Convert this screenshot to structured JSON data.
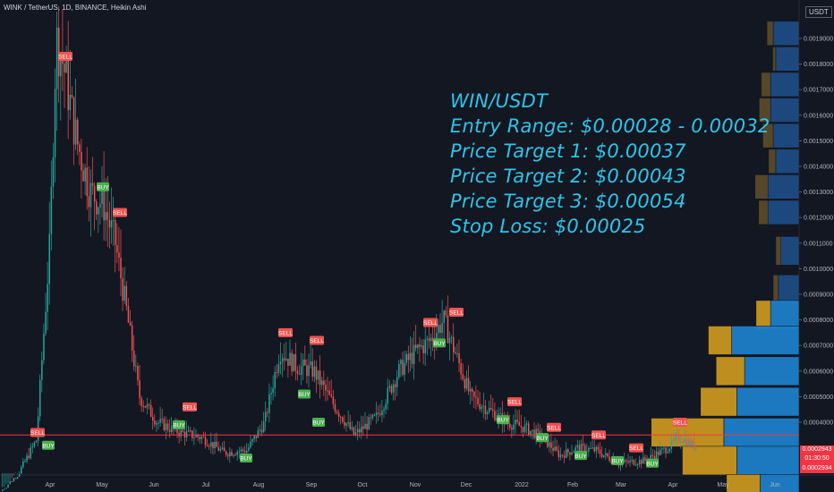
{
  "header": {
    "symbol_line": "WINK / TetherUS, 1D, BINANCE, Heikin Ashi",
    "currency": "USDT"
  },
  "annotation": {
    "lines": [
      "WIN/USDT",
      "Entry Range: $0.00028 - 0.00032",
      "Price Target 1: $0.00037",
      "Price Target 2: $0.00043",
      "Price Target 3: $0.00054",
      "Stop Loss: $0.00025"
    ]
  },
  "price_axis": {
    "labels": [
      "0.0019000",
      "0.0018000",
      "0.0017000",
      "0.0016000",
      "0.0015000",
      "0.0014000",
      "0.0013000",
      "0.0012000",
      "0.0011000",
      "0.0010000",
      "0.0009000",
      "0.0008000",
      "0.0007000",
      "0.0006000",
      "0.0005000",
      "0.0004000"
    ]
  },
  "current_price": {
    "price": "0.0002943",
    "countdown": "01:30:50",
    "reference": "0.0002934"
  },
  "colors": {
    "background": "#131722",
    "up": "#26a69a",
    "down": "#ef5350",
    "annotation": "#2fc4e8",
    "entry_line": "#f23645",
    "vp_up": "#2962ff",
    "vp_down": "#f0b323"
  },
  "chart_data": {
    "type": "candlestick",
    "title": "WINK / TetherUS, 1D, BINANCE, Heikin Ashi",
    "x_tick_labels": [
      "Apr",
      "May",
      "Jun",
      "Jul",
      "Aug",
      "Sep",
      "Oct",
      "Nov",
      "Dec",
      "2022",
      "Feb",
      "Mar",
      "Apr",
      "May",
      "Jun"
    ],
    "y_scale": "linear",
    "y_range": [
      0.0001,
      0.00195
    ],
    "horizontal_line": 0.00035,
    "signals": [
      {
        "label": "SELL",
        "date": "Mar",
        "price": 0.00036
      },
      {
        "label": "BUY",
        "date": "Mar",
        "price": 0.00031
      },
      {
        "label": "SELL",
        "date": "Apr",
        "price": 0.00183
      },
      {
        "label": "BUY",
        "date": "May",
        "price": 0.00132
      },
      {
        "label": "SELL",
        "date": "May",
        "price": 0.00122
      },
      {
        "label": "SELL",
        "date": "Jun",
        "price": 0.00046
      },
      {
        "label": "BUY",
        "date": "Jun",
        "price": 0.00039
      },
      {
        "label": "BUY",
        "date": "Jul",
        "price": 0.00026
      },
      {
        "label": "SELL",
        "date": "Aug",
        "price": 0.00075
      },
      {
        "label": "BUY",
        "date": "Aug",
        "price": 0.00051
      },
      {
        "label": "SELL",
        "date": "Sep",
        "price": 0.00072
      },
      {
        "label": "BUY",
        "date": "Sep",
        "price": 0.0004
      },
      {
        "label": "SELL",
        "date": "Nov",
        "price": 0.00079
      },
      {
        "label": "BUY",
        "date": "Nov",
        "price": 0.00071
      },
      {
        "label": "SELL",
        "date": "Nov",
        "price": 0.00083
      },
      {
        "label": "BUY",
        "date": "Dec",
        "price": 0.00041
      },
      {
        "label": "SELL",
        "date": "Dec",
        "price": 0.00048
      },
      {
        "label": "SELL",
        "date": "2022",
        "price": 0.00038
      },
      {
        "label": "BUY",
        "date": "2022",
        "price": 0.00034
      },
      {
        "label": "BUY",
        "date": "Feb",
        "price": 0.00027
      },
      {
        "label": "SELL",
        "date": "Feb",
        "price": 0.00035
      },
      {
        "label": "BUY",
        "date": "Mar",
        "price": 0.00025
      },
      {
        "label": "SELL",
        "date": "Mar",
        "price": 0.0003
      },
      {
        "label": "BUY",
        "date": "Mar",
        "price": 0.00024
      },
      {
        "label": "SELL",
        "date": "Apr",
        "price": 0.0004
      }
    ],
    "volume_profile": [
      {
        "price": 0.00192,
        "up": 0.5,
        "down": 0.12
      },
      {
        "price": 0.00182,
        "up": 0.45,
        "down": 0.06
      },
      {
        "price": 0.00172,
        "up": 0.55,
        "down": 0.18
      },
      {
        "price": 0.00162,
        "up": 0.55,
        "down": 0.22
      },
      {
        "price": 0.00152,
        "up": 0.5,
        "down": 0.2
      },
      {
        "price": 0.00142,
        "up": 0.45,
        "down": 0.14
      },
      {
        "price": 0.00132,
        "up": 0.6,
        "down": 0.25
      },
      {
        "price": 0.00122,
        "up": 0.6,
        "down": 0.18
      },
      {
        "price": 0.00107,
        "up": 0.35,
        "down": 0.1
      },
      {
        "price": 0.00092,
        "up": 0.4,
        "down": 0.1
      },
      {
        "price": 0.00082,
        "up": 0.55,
        "down": 0.28
      },
      {
        "price": 0.00072,
        "up": 1.3,
        "down": 0.45
      },
      {
        "price": 0.0006,
        "up": 1.05,
        "down": 0.55
      },
      {
        "price": 0.00048,
        "up": 1.2,
        "down": 0.7
      },
      {
        "price": 0.00036,
        "up": 1.45,
        "down": 1.4
      },
      {
        "price": 0.00025,
        "up": 1.2,
        "down": 1.05
      },
      {
        "price": 0.00014,
        "up": 0.75,
        "down": 0.65
      }
    ]
  }
}
